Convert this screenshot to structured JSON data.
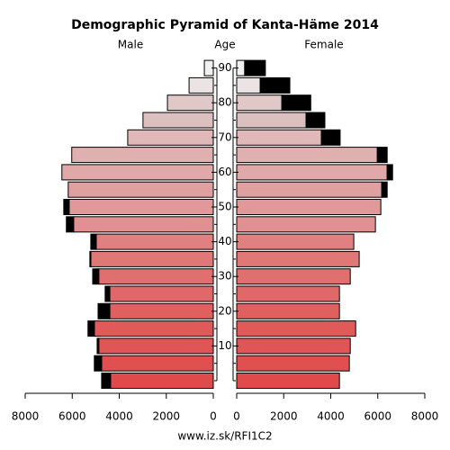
{
  "chart_data": {
    "type": "pyramid",
    "title": "Demographic Pyramid of Kanta-Häme 2014",
    "left_label": "Male",
    "center_label": "Age",
    "right_label": "Female",
    "footer": "www.iz.sk/RFI1C2",
    "categories": [
      null,
      null,
      10,
      null,
      20,
      null,
      30,
      null,
      40,
      null,
      50,
      null,
      60,
      null,
      70,
      null,
      80,
      null,
      90
    ],
    "colors": [
      "#e04a4a",
      "#e05050",
      "#e05656",
      "#e05a5a",
      "#e06060",
      "#e06868",
      "#e07070",
      "#e07878",
      "#e08080",
      "#e09090",
      "#e09898",
      "#e0a0a0",
      "#e0a8a8",
      "#e0b0b0",
      "#e0b8b8",
      "#dcc0c0",
      "#e0c8c8",
      "#ece4e4",
      "#f2f0f0"
    ],
    "series": [
      {
        "side": "left",
        "values": [
          4370,
          4750,
          4870,
          5060,
          4400,
          4400,
          4870,
          5210,
          4980,
          5940,
          6130,
          6170,
          6440,
          6020,
          3640,
          2990,
          1950,
          1030,
          380
        ]
      },
      {
        "side": "left",
        "color": "#000000",
        "values": [
          380,
          310,
          70,
          270,
          500,
          200,
          260,
          40,
          230,
          310,
          230,
          0,
          0,
          0,
          0,
          0,
          0,
          0,
          0
        ]
      },
      {
        "side": "right",
        "values": [
          4370,
          4790,
          4830,
          5060,
          4370,
          4370,
          4830,
          5210,
          4980,
          5900,
          6130,
          6170,
          6400,
          5980,
          3600,
          2950,
          1920,
          1000,
          340
        ]
      },
      {
        "side": "right",
        "color": "#000000",
        "values": [
          0,
          0,
          0,
          0,
          0,
          0,
          0,
          0,
          0,
          0,
          0,
          230,
          230,
          420,
          800,
          800,
          1230,
          1260,
          880
        ]
      }
    ],
    "xlim": [
      0,
      8000
    ],
    "xticks": [
      0,
      2000,
      4000,
      6000,
      8000
    ]
  }
}
